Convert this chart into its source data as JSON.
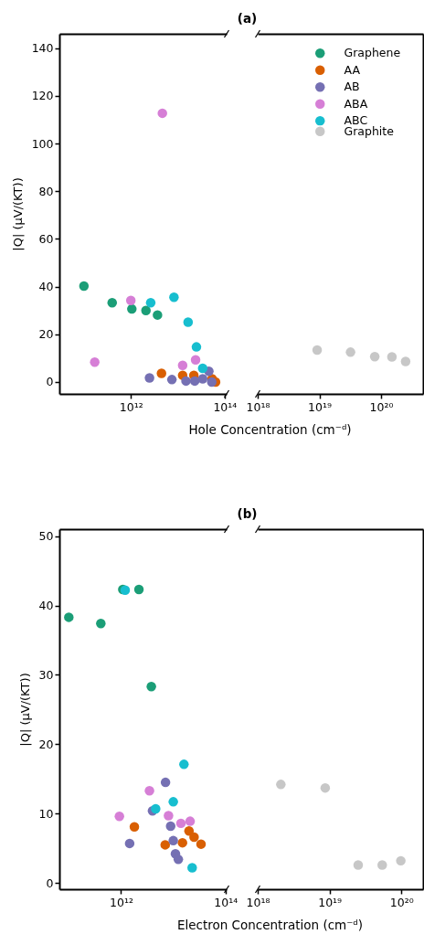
{
  "chart_data": [
    {
      "type": "scatter",
      "title": "(a)",
      "xlabel": "Hole Concentration (cm⁻ᵈ)",
      "ylabel": "|Q| (μV/(KT))",
      "log": "x",
      "marker": "circle",
      "legend": "top right",
      "xlim": [
        30000000000.0,
        110000000000000.0
      ],
      "xticks": [
        {
          "value": 1000000000000.0,
          "label": "10¹²"
        },
        {
          "value": 100000000000000.0,
          "label": "10¹⁴"
        }
      ],
      "ylim": [
        -5,
        146
      ],
      "yticks": [
        0,
        20,
        40,
        60,
        80,
        100,
        120,
        140
      ],
      "series": [
        {
          "name": "Graphene",
          "color": "#1b9e77",
          "x": [
            100000000000.0,
            400000000000.0,
            1050000000000.0,
            2100000000000.0,
            3700000000000.0
          ],
          "values": [
            40.2,
            33.2,
            30.6,
            30.0,
            28.1
          ]
        },
        {
          "name": "AA",
          "color": "#d95f02",
          "x": [
            4500000000000.0,
            12700000000000.0,
            22000000000000.0,
            54000000000000.0,
            64000000000000.0
          ],
          "values": [
            3.6,
            2.8,
            2.8,
            1.3,
            0
          ]
        },
        {
          "name": "AB",
          "color": "#7570b3",
          "x": [
            2500000000000.0,
            7500000000000.0,
            15000000000000.0,
            23000000000000.0,
            34000000000000.0,
            46000000000000.0,
            53000000000000.0
          ],
          "values": [
            1.7,
            1.0,
            0.4,
            0.4,
            1.3,
            4.5,
            0
          ]
        },
        {
          "name": "ABA",
          "color": "#d67fd6",
          "x": [
            4700000000000.0,
            1000000000000.0,
            170000000000.0,
            12700000000000.0,
            24000000000000.0
          ],
          "values": [
            112.7,
            34.2,
            8.3,
            7.0,
            9.3
          ]
        },
        {
          "name": "ABC",
          "color": "#17becf",
          "x": [
            2650000000000.0,
            8300000000000.0,
            16600000000000.0,
            25000000000000.0,
            34000000000000.0
          ],
          "values": [
            33.2,
            35.5,
            25.1,
            14.7,
            5.7
          ]
        }
      ]
    },
    {
      "type": "scatter",
      "log": "x",
      "marker": "circle",
      "legend": "top right",
      "tick_labels": "x",
      "xlim": [
        1e+18,
        4.8e+20
      ],
      "xticks": [
        {
          "value": 1e+18,
          "label": "10¹⁸"
        },
        {
          "value": 1e+19,
          "label": "10¹⁹"
        },
        {
          "value": 1e+20,
          "label": "10²⁰"
        }
      ],
      "ylim": [
        -5,
        146
      ],
      "series": [
        {
          "name": "Graphite",
          "color": "#c7c7c7",
          "x": [
            9.2e+18,
            3.2e+19,
            7.9e+19,
            1.5e+20,
            2.5e+20
          ],
          "values": [
            13.4,
            12.5,
            10.6,
            10.5,
            8.6
          ]
        }
      ]
    },
    {
      "type": "scatter",
      "title": "(b)",
      "xlabel": "Electron Concentration (cm⁻ᵈ)",
      "ylabel": "|Q| (μV/(KT))",
      "log": "x",
      "marker": "circle",
      "xlim": [
        66000000000.0,
        105000000000000.0
      ],
      "xticks": [
        {
          "value": 1000000000000.0,
          "label": "10¹²"
        },
        {
          "value": 100000000000000.0,
          "label": "10¹⁴"
        }
      ],
      "ylim": [
        -0.9,
        51
      ],
      "yticks": [
        0,
        10,
        20,
        30,
        40,
        50
      ],
      "series": [
        {
          "color": "#1b9e77",
          "x": [
            100000000000.0,
            410000000000.0,
            1080000000000.0,
            2200000000000.0,
            3800000000000.0
          ],
          "values": [
            38.3,
            37.4,
            42.3,
            42.3,
            28.3
          ]
        },
        {
          "color": "#d95f02",
          "x": [
            1800000000000.0,
            7000000000000.0,
            15000000000000.0,
            20000000000000.0,
            25000000000000.0,
            34000000000000.0
          ],
          "values": [
            8.1,
            5.5,
            5.8,
            7.5,
            6.6,
            5.6
          ]
        },
        {
          "color": "#7570b3",
          "x": [
            1460000000000.0,
            4000000000000.0,
            7100000000000.0,
            8900000000000.0,
            10000000000000.0,
            11000000000000.0,
            12500000000000.0
          ],
          "values": [
            5.7,
            10.4,
            14.5,
            8.2,
            6.1,
            4.2,
            3.4
          ]
        },
        {
          "color": "#d67fd6",
          "x": [
            930000000000.0,
            3500000000000.0,
            8100000000000.0,
            14000000000000.0,
            21000000000000.0
          ],
          "values": [
            9.6,
            13.3,
            9.7,
            8.6,
            8.9
          ]
        },
        {
          "color": "#17becf",
          "x": [
            1200000000000.0,
            4600000000000.0,
            10000000000000.0,
            16000000000000.0,
            23000000000000.0
          ],
          "values": [
            42.2,
            10.7,
            11.7,
            17.1,
            2.2
          ]
        }
      ]
    },
    {
      "type": "scatter",
      "log": "x",
      "marker": "circle",
      "tick_labels": "x",
      "xlim": [
        1e+18,
        2e+20
      ],
      "xticks": [
        {
          "value": 1e+18,
          "label": "10¹⁸"
        },
        {
          "value": 1e+19,
          "label": "10¹⁹"
        },
        {
          "value": 1e+20,
          "label": "10²⁰"
        }
      ],
      "ylim": [
        -0.9,
        51
      ],
      "series": [
        {
          "color": "#c7c7c7",
          "x": [
            2.1e+18,
            8.7e+18,
            2.5e+19,
            5.4e+19,
            9.8e+19
          ],
          "values": [
            14.2,
            13.7,
            2.6,
            2.6,
            3.2
          ]
        }
      ]
    }
  ]
}
